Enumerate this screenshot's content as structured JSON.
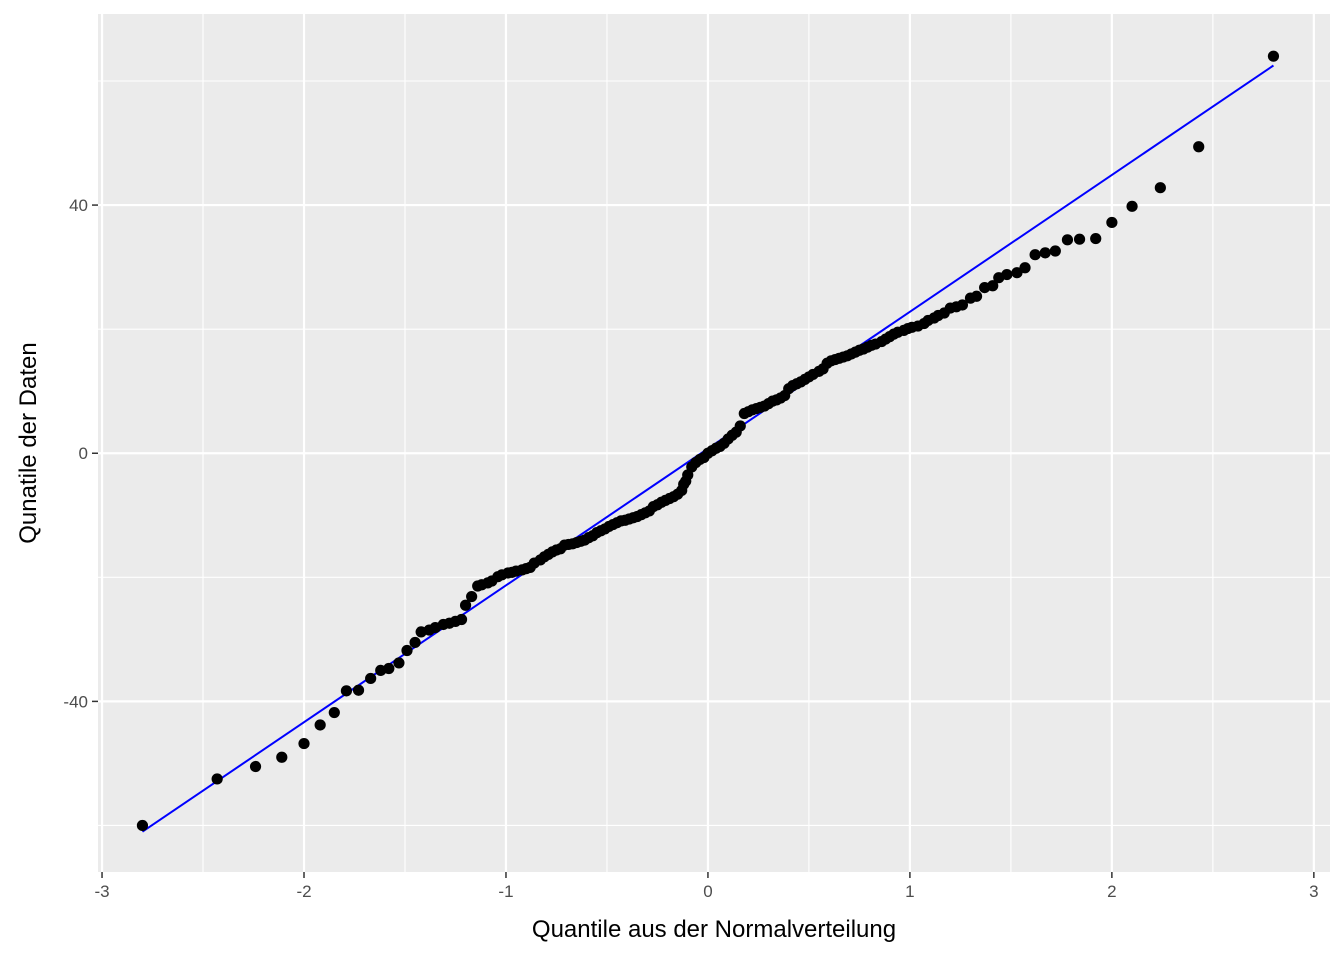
{
  "chart_data": {
    "type": "scatter",
    "title": "",
    "xlabel": "Quantile aus der Normalverteilung",
    "ylabel": "Qunatile der Daten",
    "xlim": [
      -3.02,
      3.08
    ],
    "ylim": [
      -67.5,
      70.8
    ],
    "x_ticks": [
      -3,
      -2,
      -1,
      0,
      1,
      2,
      3
    ],
    "y_ticks": [
      -40,
      0,
      40
    ],
    "grid": true,
    "legend": "none",
    "colors": {
      "panel": "#ebebeb",
      "grid": "#ffffff",
      "points": "#000000",
      "reference_line": "#0000ff"
    },
    "reference_line": {
      "x": [
        -2.8,
        2.8
      ],
      "y": [
        -61.0,
        62.5
      ]
    },
    "points": [
      {
        "x": -2.8,
        "y": -60.0
      },
      {
        "x": -2.43,
        "y": -52.5
      },
      {
        "x": -2.24,
        "y": -50.5
      },
      {
        "x": -2.11,
        "y": -49.0
      },
      {
        "x": -2.0,
        "y": -46.8
      },
      {
        "x": -1.92,
        "y": -43.8
      },
      {
        "x": -1.85,
        "y": -41.8
      },
      {
        "x": -1.79,
        "y": -38.3
      },
      {
        "x": -1.73,
        "y": -38.2
      },
      {
        "x": -1.67,
        "y": -36.3
      },
      {
        "x": -1.62,
        "y": -35.0
      },
      {
        "x": -1.58,
        "y": -34.7
      },
      {
        "x": -1.53,
        "y": -33.8
      },
      {
        "x": -1.49,
        "y": -31.8
      },
      {
        "x": -1.45,
        "y": -30.5
      },
      {
        "x": -1.42,
        "y": -28.8
      },
      {
        "x": -1.38,
        "y": -28.5
      },
      {
        "x": -1.35,
        "y": -28.1
      },
      {
        "x": -1.31,
        "y": -27.6
      },
      {
        "x": -1.28,
        "y": -27.4
      },
      {
        "x": -1.25,
        "y": -27.1
      },
      {
        "x": -1.22,
        "y": -26.8
      },
      {
        "x": -1.2,
        "y": -24.5
      },
      {
        "x": -1.17,
        "y": -23.1
      },
      {
        "x": -1.14,
        "y": -21.4
      },
      {
        "x": -1.12,
        "y": -21.2
      },
      {
        "x": -1.09,
        "y": -20.9
      },
      {
        "x": -1.07,
        "y": -20.6
      },
      {
        "x": -1.04,
        "y": -19.9
      },
      {
        "x": -1.02,
        "y": -19.6
      },
      {
        "x": -0.99,
        "y": -19.3
      },
      {
        "x": -0.97,
        "y": -19.2
      },
      {
        "x": -0.95,
        "y": -19.0
      },
      {
        "x": -0.92,
        "y": -18.8
      },
      {
        "x": -0.9,
        "y": -18.6
      },
      {
        "x": -0.88,
        "y": -18.4
      },
      {
        "x": -0.86,
        "y": -17.7
      },
      {
        "x": -0.83,
        "y": -17.2
      },
      {
        "x": -0.81,
        "y": -16.7
      },
      {
        "x": -0.79,
        "y": -16.3
      },
      {
        "x": -0.77,
        "y": -15.9
      },
      {
        "x": -0.75,
        "y": -15.6
      },
      {
        "x": -0.73,
        "y": -15.4
      },
      {
        "x": -0.71,
        "y": -14.8
      },
      {
        "x": -0.69,
        "y": -14.7
      },
      {
        "x": -0.67,
        "y": -14.6
      },
      {
        "x": -0.65,
        "y": -14.4
      },
      {
        "x": -0.63,
        "y": -14.2
      },
      {
        "x": -0.61,
        "y": -14.0
      },
      {
        "x": -0.59,
        "y": -13.6
      },
      {
        "x": -0.57,
        "y": -13.3
      },
      {
        "x": -0.55,
        "y": -12.8
      },
      {
        "x": -0.53,
        "y": -12.5
      },
      {
        "x": -0.51,
        "y": -12.2
      },
      {
        "x": -0.49,
        "y": -11.8
      },
      {
        "x": -0.47,
        "y": -11.5
      },
      {
        "x": -0.45,
        "y": -11.2
      },
      {
        "x": -0.43,
        "y": -10.9
      },
      {
        "x": -0.41,
        "y": -10.8
      },
      {
        "x": -0.39,
        "y": -10.6
      },
      {
        "x": -0.37,
        "y": -10.4
      },
      {
        "x": -0.35,
        "y": -10.2
      },
      {
        "x": -0.33,
        "y": -9.9
      },
      {
        "x": -0.31,
        "y": -9.6
      },
      {
        "x": -0.29,
        "y": -9.3
      },
      {
        "x": -0.27,
        "y": -8.6
      },
      {
        "x": -0.25,
        "y": -8.3
      },
      {
        "x": -0.23,
        "y": -7.9
      },
      {
        "x": -0.21,
        "y": -7.6
      },
      {
        "x": -0.19,
        "y": -7.3
      },
      {
        "x": -0.17,
        "y": -7.0
      },
      {
        "x": -0.15,
        "y": -6.6
      },
      {
        "x": -0.13,
        "y": -6.0
      },
      {
        "x": -0.12,
        "y": -5.0
      },
      {
        "x": -0.11,
        "y": -4.5
      },
      {
        "x": -0.1,
        "y": -3.5
      },
      {
        "x": -0.08,
        "y": -2.2
      },
      {
        "x": -0.06,
        "y": -1.5
      },
      {
        "x": -0.04,
        "y": -1.0
      },
      {
        "x": -0.02,
        "y": -0.7
      },
      {
        "x": 0.0,
        "y": 0.0
      },
      {
        "x": 0.02,
        "y": 0.4
      },
      {
        "x": 0.04,
        "y": 0.8
      },
      {
        "x": 0.06,
        "y": 1.1
      },
      {
        "x": 0.08,
        "y": 1.6
      },
      {
        "x": 0.1,
        "y": 2.3
      },
      {
        "x": 0.12,
        "y": 2.9
      },
      {
        "x": 0.14,
        "y": 3.4
      },
      {
        "x": 0.16,
        "y": 4.4
      },
      {
        "x": 0.18,
        "y": 6.4
      },
      {
        "x": 0.2,
        "y": 6.7
      },
      {
        "x": 0.22,
        "y": 7.0
      },
      {
        "x": 0.24,
        "y": 7.2
      },
      {
        "x": 0.26,
        "y": 7.4
      },
      {
        "x": 0.28,
        "y": 7.6
      },
      {
        "x": 0.3,
        "y": 8.0
      },
      {
        "x": 0.32,
        "y": 8.4
      },
      {
        "x": 0.34,
        "y": 8.6
      },
      {
        "x": 0.36,
        "y": 8.9
      },
      {
        "x": 0.38,
        "y": 9.3
      },
      {
        "x": 0.4,
        "y": 10.4
      },
      {
        "x": 0.42,
        "y": 10.9
      },
      {
        "x": 0.44,
        "y": 11.2
      },
      {
        "x": 0.46,
        "y": 11.5
      },
      {
        "x": 0.48,
        "y": 11.9
      },
      {
        "x": 0.5,
        "y": 12.3
      },
      {
        "x": 0.52,
        "y": 12.7
      },
      {
        "x": 0.55,
        "y": 13.2
      },
      {
        "x": 0.57,
        "y": 13.6
      },
      {
        "x": 0.59,
        "y": 14.5
      },
      {
        "x": 0.61,
        "y": 14.9
      },
      {
        "x": 0.63,
        "y": 15.1
      },
      {
        "x": 0.65,
        "y": 15.3
      },
      {
        "x": 0.67,
        "y": 15.5
      },
      {
        "x": 0.69,
        "y": 15.7
      },
      {
        "x": 0.71,
        "y": 16.0
      },
      {
        "x": 0.73,
        "y": 16.3
      },
      {
        "x": 0.75,
        "y": 16.6
      },
      {
        "x": 0.77,
        "y": 16.8
      },
      {
        "x": 0.79,
        "y": 17.1
      },
      {
        "x": 0.81,
        "y": 17.4
      },
      {
        "x": 0.83,
        "y": 17.6
      },
      {
        "x": 0.86,
        "y": 18.0
      },
      {
        "x": 0.88,
        "y": 18.4
      },
      {
        "x": 0.9,
        "y": 18.8
      },
      {
        "x": 0.92,
        "y": 19.2
      },
      {
        "x": 0.94,
        "y": 19.5
      },
      {
        "x": 0.97,
        "y": 19.8
      },
      {
        "x": 0.99,
        "y": 20.1
      },
      {
        "x": 1.01,
        "y": 20.3
      },
      {
        "x": 1.04,
        "y": 20.5
      },
      {
        "x": 1.07,
        "y": 20.9
      },
      {
        "x": 1.09,
        "y": 21.4
      },
      {
        "x": 1.12,
        "y": 21.8
      },
      {
        "x": 1.14,
        "y": 22.2
      },
      {
        "x": 1.17,
        "y": 22.6
      },
      {
        "x": 1.2,
        "y": 23.4
      },
      {
        "x": 1.23,
        "y": 23.6
      },
      {
        "x": 1.26,
        "y": 23.9
      },
      {
        "x": 1.3,
        "y": 25.0
      },
      {
        "x": 1.33,
        "y": 25.3
      },
      {
        "x": 1.37,
        "y": 26.7
      },
      {
        "x": 1.41,
        "y": 27.0
      },
      {
        "x": 1.44,
        "y": 28.3
      },
      {
        "x": 1.48,
        "y": 28.8
      },
      {
        "x": 1.53,
        "y": 29.1
      },
      {
        "x": 1.57,
        "y": 29.9
      },
      {
        "x": 1.62,
        "y": 32.0
      },
      {
        "x": 1.67,
        "y": 32.3
      },
      {
        "x": 1.72,
        "y": 32.6
      },
      {
        "x": 1.78,
        "y": 34.4
      },
      {
        "x": 1.84,
        "y": 34.5
      },
      {
        "x": 1.92,
        "y": 34.6
      },
      {
        "x": 2.0,
        "y": 37.2
      },
      {
        "x": 2.1,
        "y": 39.8
      },
      {
        "x": 2.24,
        "y": 42.8
      },
      {
        "x": 2.43,
        "y": 49.4
      },
      {
        "x": 2.8,
        "y": 64.0
      }
    ]
  }
}
